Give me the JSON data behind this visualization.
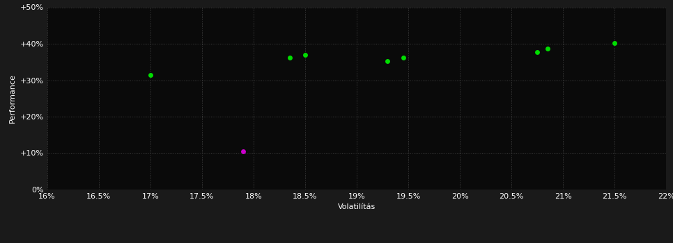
{
  "background_color": "#1a1a1a",
  "plot_bg_color": "#0a0a0a",
  "text_color": "#ffffff",
  "xlabel": "Volatilítás",
  "ylabel": "Performance",
  "xlim": [
    0.16,
    0.22
  ],
  "ylim": [
    0.0,
    0.5
  ],
  "xticks": [
    0.16,
    0.165,
    0.17,
    0.175,
    0.18,
    0.185,
    0.19,
    0.195,
    0.2,
    0.205,
    0.21,
    0.215,
    0.22
  ],
  "yticks": [
    0.0,
    0.1,
    0.2,
    0.3,
    0.4,
    0.5
  ],
  "green_points": [
    [
      0.17,
      0.315
    ],
    [
      0.1835,
      0.362
    ],
    [
      0.185,
      0.37
    ],
    [
      0.193,
      0.353
    ],
    [
      0.1945,
      0.361
    ],
    [
      0.2075,
      0.378
    ],
    [
      0.2085,
      0.387
    ],
    [
      0.215,
      0.402
    ]
  ],
  "magenta_points": [
    [
      0.179,
      0.105
    ]
  ],
  "green_color": "#00dd00",
  "magenta_color": "#cc00cc",
  "point_size": 25
}
